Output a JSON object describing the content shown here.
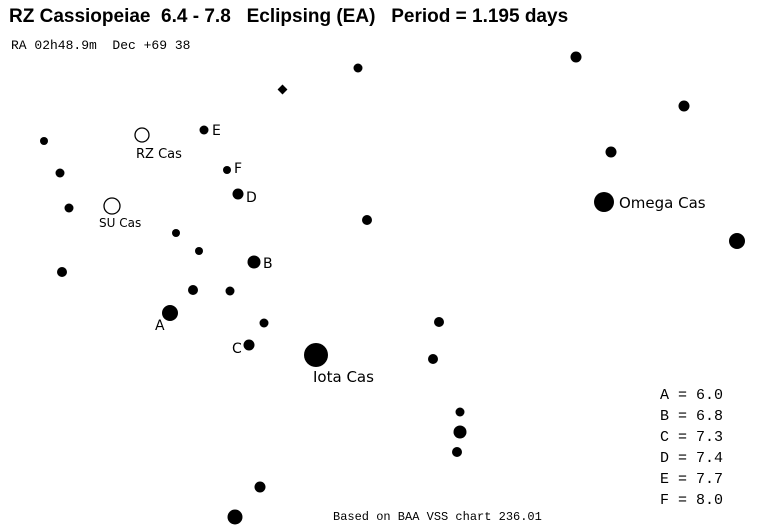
{
  "title": "RZ Cassiopeiae  6.4 - 7.8   Eclipsing (EA)   Period = 1.195 days",
  "coords": "RA 02h48.9m  Dec +69 38",
  "footer": "Based on BAA VSS chart 236.01",
  "legend": [
    "A = 6.0",
    "B = 6.8",
    "C = 7.3",
    "D = 7.4",
    "E = 7.7",
    "F = 8.0"
  ],
  "variables": [
    {
      "label": "RZ Cas"
    },
    {
      "label": "SU Cas"
    }
  ],
  "named_stars": [
    {
      "label": "Omega Cas"
    },
    {
      "label": "Iota Cas"
    }
  ],
  "comparison_labels": [
    "A",
    "B",
    "C",
    "D",
    "E",
    "F"
  ]
}
